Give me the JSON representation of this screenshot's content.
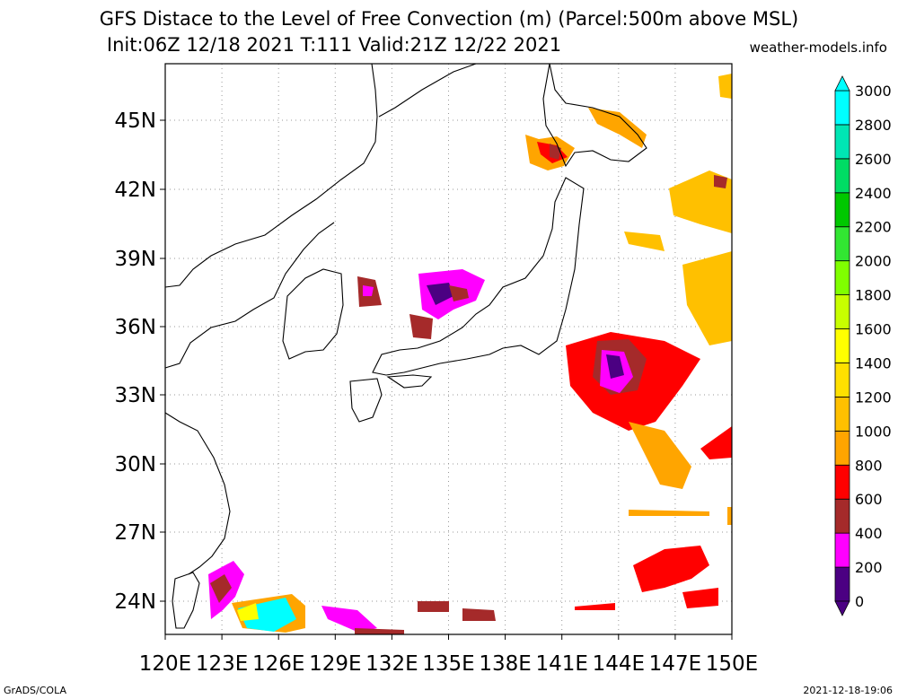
{
  "header": {
    "title_line1": "GFS Distace to the Level of Free Convection (m) (Parcel:500m above MSL)",
    "title_line2": "Init:06Z 12/18 2021 T:111 Valid:21Z 12/22 2021",
    "site": "weather-models.info"
  },
  "map": {
    "lon_labels": [
      "120E",
      "123E",
      "126E",
      "129E",
      "132E",
      "135E",
      "138E",
      "141E",
      "144E",
      "147E",
      "150E"
    ],
    "lat_labels": [
      "24N",
      "27N",
      "30N",
      "33N",
      "36N",
      "39N",
      "42N",
      "45N"
    ],
    "grid": "dotted"
  },
  "colorbar": {
    "labels": [
      "0",
      "200",
      "400",
      "600",
      "800",
      "1000",
      "1200",
      "1400",
      "1600",
      "1800",
      "2000",
      "2200",
      "2400",
      "2600",
      "2800",
      "3000"
    ],
    "colors": [
      "#4b0082",
      "#ff00ff",
      "#a52a2a",
      "#ff0000",
      "#ffa500",
      "#ffc000",
      "#ffe000",
      "#ffff00",
      "#c8ff00",
      "#80ff00",
      "#32e632",
      "#00c800",
      "#00dc64",
      "#00e6b4",
      "#00ffff"
    ]
  },
  "footer": {
    "left": "GrADS/COLA",
    "right": "2021-12-18-19:06"
  }
}
